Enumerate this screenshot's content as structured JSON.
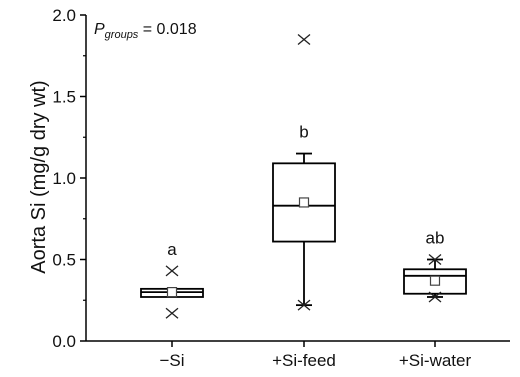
{
  "chart_data": {
    "type": "box",
    "title": "",
    "xlabel": "",
    "ylabel": "Aorta Si (mg/g dry wt)",
    "ylim": [
      0.0,
      2.0
    ],
    "yticks": [
      0.0,
      0.5,
      1.0,
      1.5,
      2.0
    ],
    "ytick_labels": [
      "0.0",
      "0.5",
      "1.0",
      "1.5",
      "2.0"
    ],
    "categories": [
      "−Si",
      "+Si-feed",
      "+Si-water"
    ],
    "annotation": {
      "p_symbol": "P",
      "p_subscript": "groups",
      "p_value_text": " = 0.018"
    },
    "groups": [
      {
        "label": "−Si",
        "q1": 0.27,
        "median": 0.3,
        "q3": 0.32,
        "whisker_low": null,
        "whisker_high": null,
        "mean": 0.3,
        "outliers": [
          0.43,
          0.17
        ],
        "significance_letter": "a"
      },
      {
        "label": "+Si-feed",
        "q1": 0.61,
        "median": 0.83,
        "q3": 1.09,
        "whisker_low": 0.22,
        "whisker_high": 1.15,
        "mean": 0.85,
        "outliers": [
          1.85
        ],
        "whisker_markers": [
          0.22
        ],
        "significance_letter": "b"
      },
      {
        "label": "+Si-water",
        "q1": 0.29,
        "median": 0.4,
        "q3": 0.44,
        "whisker_low": 0.27,
        "whisker_high": 0.5,
        "mean": 0.37,
        "outliers": [],
        "whisker_markers": [
          0.5,
          0.27
        ],
        "significance_letter": "ab"
      }
    ]
  }
}
